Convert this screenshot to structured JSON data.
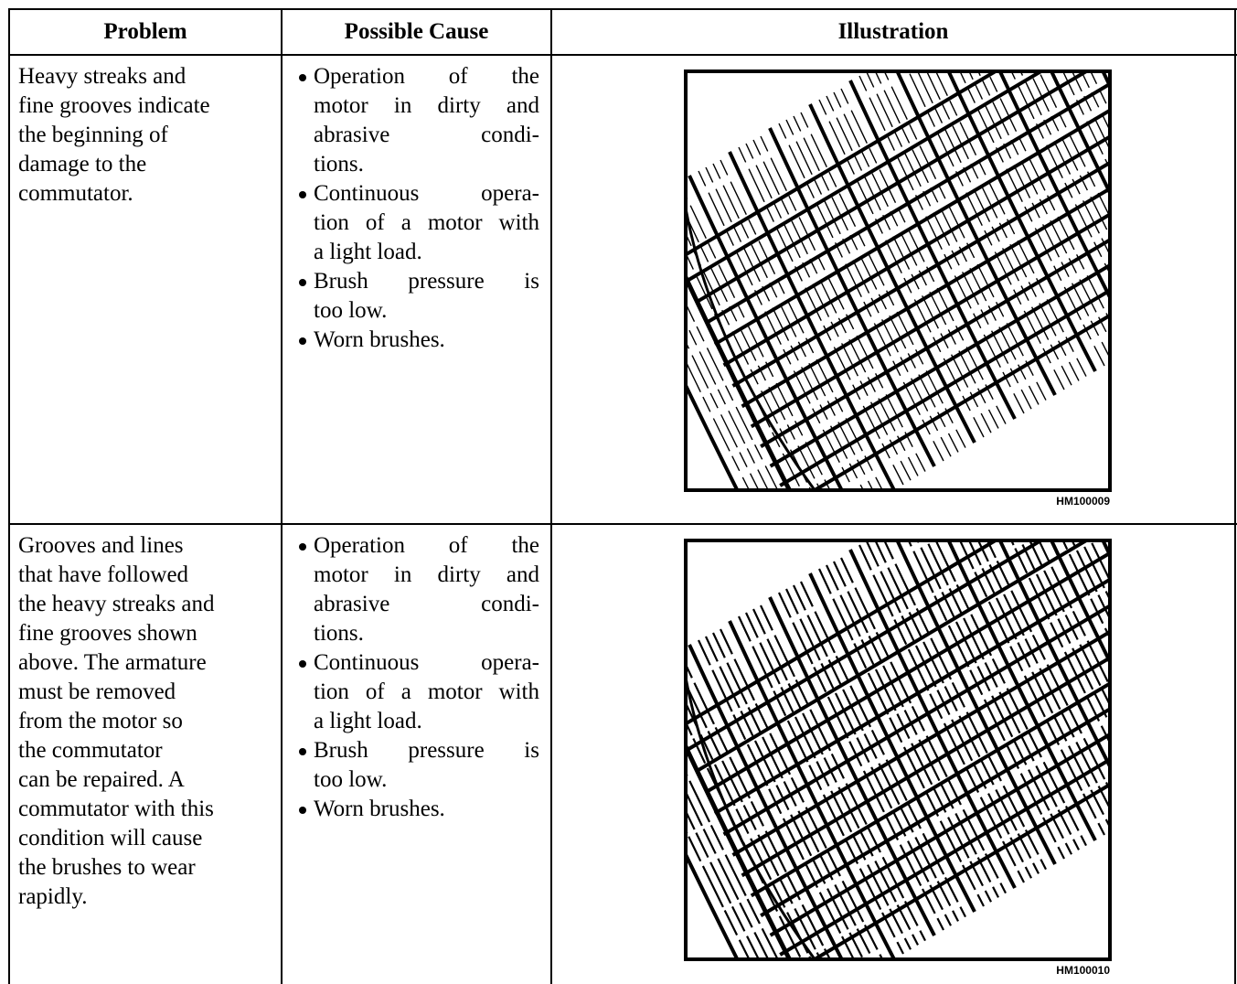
{
  "table": {
    "headers": [
      "Problem",
      "Possible Cause",
      "Illustration"
    ],
    "rows": [
      {
        "problem": [
          "Heavy streaks and",
          "fine grooves indicate",
          "the beginning of",
          "damage to the",
          "commutator."
        ],
        "causes": [
          [
            "Operation of the",
            "motor in dirty and",
            "abrasive condi-",
            "tions."
          ],
          [
            "Continuous opera-",
            "tion of a motor with",
            "a light load."
          ],
          [
            "Brush pressure is",
            "too low."
          ],
          [
            "Worn brushes."
          ]
        ],
        "illustration": "HM100009"
      },
      {
        "problem": [
          "Grooves and lines",
          "that have followed",
          "the heavy streaks and",
          "fine grooves shown",
          "above. The armature",
          "must be removed",
          "from the motor so",
          "the commutator",
          "can be repaired. A",
          "commutator with this",
          "condition will cause",
          "the brushes to wear",
          "rapidly."
        ],
        "causes": [
          [
            "Operation of the",
            "motor in dirty and",
            "abrasive condi-",
            "tions."
          ],
          [
            "Continuous opera-",
            "tion of a motor with",
            "a light load."
          ],
          [
            "Brush pressure is",
            "too low."
          ],
          [
            "Worn brushes."
          ]
        ],
        "illustration": "HM100010"
      }
    ]
  }
}
